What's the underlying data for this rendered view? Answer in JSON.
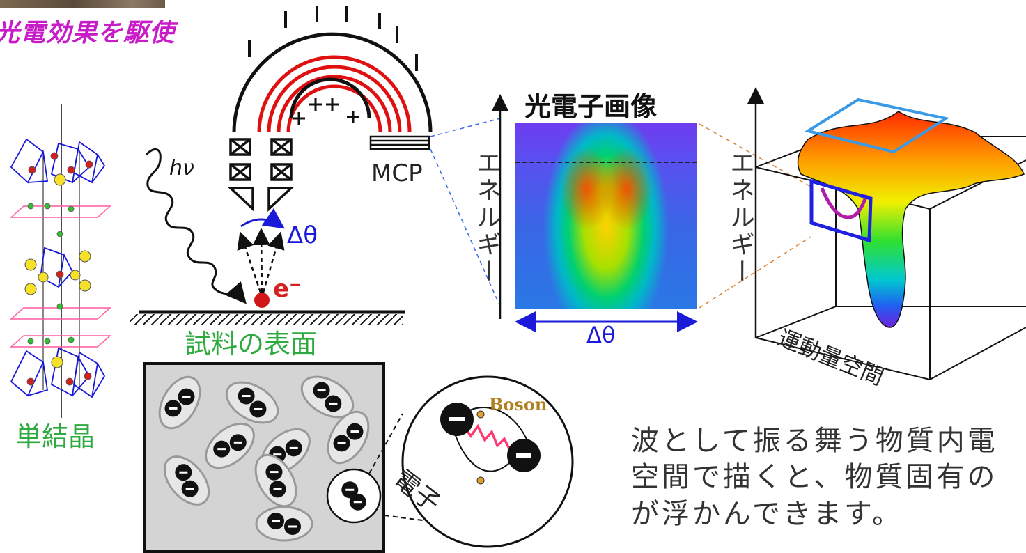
{
  "labels": {
    "method_title": "光電効果を駆使",
    "single_crystal": "単結晶",
    "sample_surface": "試料の表面",
    "mcp": "MCP",
    "photon": "hν",
    "electron_symbol": "e⁻",
    "angle_1": "Δθ",
    "angle_2": "Δθ",
    "photoelectron_image": "光電子画像",
    "energy_axis_1": "エネルギー",
    "energy_axis_2": "エネルギー",
    "momentum_space": "運動量空間",
    "boson": "Boson",
    "electron": "電子"
  },
  "description": {
    "line1": "波として振る舞う物質内電",
    "line2": "空間で描くと、物質固有の",
    "line3": "が浮かんできます。"
  },
  "colors": {
    "magenta": "#c81cc8",
    "green": "#2faa3f",
    "blue": "#1a1ad8",
    "red": "#e01010",
    "boson_gold": "#b08020",
    "sky_blue": "#3a9ae6"
  },
  "icons": {
    "photon_wave": "wavy-arrow",
    "analyzer": "hemispherical-analyzer",
    "cooper_pair": "electron-pair"
  }
}
